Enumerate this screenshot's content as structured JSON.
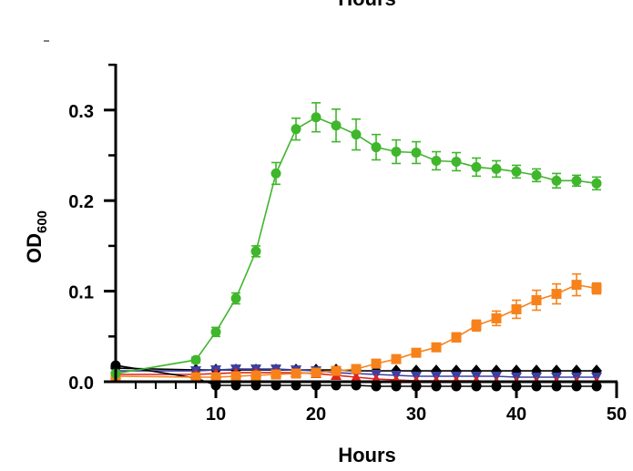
{
  "chart_data": {
    "type": "line",
    "title": "Hours",
    "xlabel": "Hours",
    "ylabel": {
      "main": "OD",
      "sub": "600"
    },
    "xlim": [
      0,
      50
    ],
    "ylim": [
      -0.01,
      0.35
    ],
    "x_ticks": [
      10,
      20,
      30,
      40,
      50
    ],
    "y_ticks": [
      0.0,
      0.1,
      0.2,
      0.3
    ],
    "y_tick_labels": [
      "0.0",
      "0.1",
      "0.2",
      "0.3"
    ],
    "legend": "none",
    "grid": false,
    "series": [
      {
        "color": "#3fb62c",
        "marker": "circle",
        "x": [
          0,
          8,
          10,
          12,
          14,
          16,
          18,
          20,
          22,
          24,
          26,
          28,
          30,
          32,
          34,
          36,
          38,
          40,
          42,
          44,
          46,
          48
        ],
        "values": [
          0.009,
          0.024,
          0.055,
          0.092,
          0.144,
          0.23,
          0.279,
          0.292,
          0.283,
          0.273,
          0.259,
          0.254,
          0.253,
          0.244,
          0.243,
          0.237,
          0.235,
          0.232,
          0.228,
          0.222,
          0.222,
          0.219
        ],
        "errors": [
          0.002,
          0.003,
          0.005,
          0.006,
          0.006,
          0.012,
          0.012,
          0.016,
          0.018,
          0.017,
          0.014,
          0.013,
          0.012,
          0.01,
          0.01,
          0.01,
          0.009,
          0.007,
          0.007,
          0.008,
          0.006,
          0.007
        ]
      },
      {
        "color": "#f7821b",
        "marker": "square",
        "x": [
          0,
          8,
          10,
          12,
          14,
          16,
          18,
          20,
          22,
          24,
          26,
          28,
          30,
          32,
          34,
          36,
          38,
          40,
          42,
          44,
          46,
          48
        ],
        "values": [
          0.006,
          0.005,
          0.005,
          0.006,
          0.007,
          0.008,
          0.009,
          0.01,
          0.012,
          0.014,
          0.02,
          0.025,
          0.032,
          0.038,
          0.049,
          0.062,
          0.07,
          0.08,
          0.09,
          0.097,
          0.107,
          0.103
        ],
        "errors": [
          0.002,
          0.002,
          0.002,
          0.002,
          0.002,
          0.002,
          0.002,
          0.002,
          0.002,
          0.002,
          0.002,
          0.002,
          0.003,
          0.004,
          0.005,
          0.006,
          0.008,
          0.01,
          0.011,
          0.011,
          0.012,
          0.006
        ]
      },
      {
        "color": "#000000",
        "marker": "diamond",
        "x": [
          0,
          8,
          10,
          12,
          14,
          16,
          18,
          20,
          22,
          24,
          26,
          28,
          30,
          32,
          34,
          36,
          38,
          40,
          42,
          44,
          46,
          48
        ],
        "values": [
          0.015,
          0.013,
          0.013,
          0.013,
          0.013,
          0.013,
          0.013,
          0.013,
          0.013,
          0.012,
          0.012,
          0.012,
          0.012,
          0.012,
          0.012,
          0.012,
          0.012,
          0.012,
          0.012,
          0.012,
          0.012,
          0.012
        ],
        "errors": [
          0.002,
          0.002,
          0.002,
          0.002,
          0.002,
          0.002,
          0.002,
          0.002,
          0.002,
          0.002,
          0.002,
          0.002,
          0.002,
          0.002,
          0.002,
          0.002,
          0.002,
          0.002,
          0.002,
          0.002,
          0.002,
          0.002
        ]
      },
      {
        "color": "#3b3fa0",
        "marker": "triangle-down",
        "x": [
          0,
          8,
          10,
          12,
          14,
          16,
          18,
          20,
          22,
          24,
          26,
          28,
          30,
          32,
          34,
          36,
          38,
          40,
          42,
          44,
          46,
          48
        ],
        "values": [
          0.012,
          0.012,
          0.013,
          0.014,
          0.014,
          0.014,
          0.013,
          0.012,
          0.01,
          0.009,
          0.008,
          0.007,
          0.006,
          0.006,
          0.006,
          0.006,
          0.006,
          0.005,
          0.005,
          0.005,
          0.005,
          0.005
        ],
        "errors": [
          0.002,
          0.002,
          0.002,
          0.003,
          0.003,
          0.003,
          0.003,
          0.002,
          0.002,
          0.002,
          0.002,
          0.002,
          0.002,
          0.002,
          0.002,
          0.002,
          0.002,
          0.002,
          0.002,
          0.002,
          0.002,
          0.002
        ]
      },
      {
        "color": "#e2231a",
        "marker": "triangle-up",
        "x": [
          0,
          8,
          10,
          12,
          14,
          16,
          18,
          20,
          22,
          24,
          26,
          28,
          30,
          32,
          34,
          36,
          38,
          40,
          42,
          44,
          46,
          48
        ],
        "values": [
          0.008,
          0.008,
          0.009,
          0.01,
          0.01,
          0.01,
          0.01,
          0.009,
          0.007,
          0.005,
          0.003,
          0.002,
          0.001,
          0.001,
          0.001,
          0.001,
          0.0,
          0.0,
          0.0,
          0.0,
          0.0,
          0.0
        ],
        "errors": [
          0.002,
          0.002,
          0.002,
          0.002,
          0.002,
          0.002,
          0.002,
          0.002,
          0.002,
          0.002,
          0.002,
          0.002,
          0.002,
          0.002,
          0.002,
          0.002,
          0.002,
          0.002,
          0.002,
          0.002,
          0.002,
          0.002
        ]
      },
      {
        "color": "#000000",
        "marker": "circle",
        "x": [
          0,
          8,
          10,
          12,
          14,
          16,
          18,
          20,
          22,
          24,
          26,
          28,
          30,
          32,
          34,
          36,
          38,
          40,
          42,
          44,
          46,
          48
        ],
        "values": [
          0.018,
          0.004,
          -0.004,
          -0.004,
          -0.004,
          -0.004,
          -0.004,
          -0.004,
          -0.004,
          -0.004,
          -0.005,
          -0.005,
          -0.005,
          -0.005,
          -0.005,
          -0.005,
          -0.005,
          -0.005,
          -0.005,
          -0.005,
          -0.005,
          -0.005
        ],
        "errors": [
          0.002,
          0.002,
          0.002,
          0.002,
          0.002,
          0.002,
          0.002,
          0.002,
          0.002,
          0.002,
          0.002,
          0.002,
          0.002,
          0.002,
          0.002,
          0.002,
          0.002,
          0.002,
          0.002,
          0.002,
          0.002,
          0.002
        ]
      }
    ]
  }
}
